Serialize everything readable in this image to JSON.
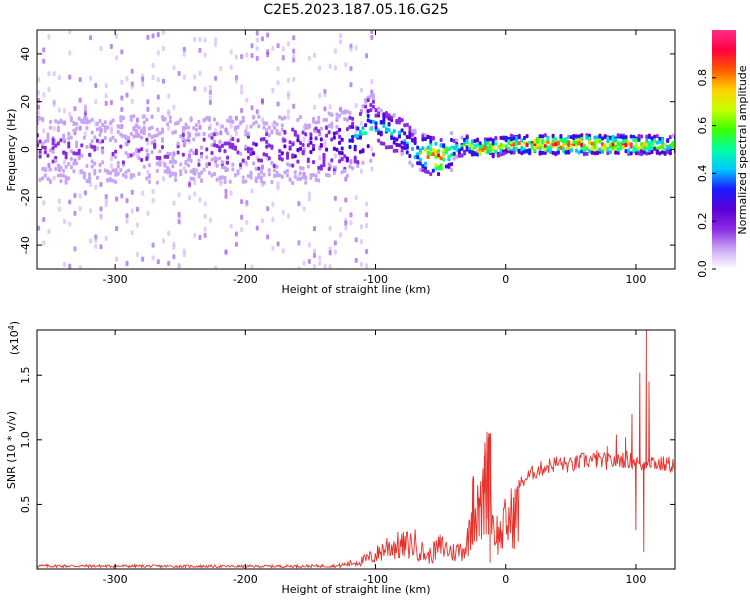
{
  "title": "C2E5.2023.187.05.16.G25",
  "chart_data": [
    {
      "type": "heatmap",
      "xlabel": "Height of straight line (km)",
      "ylabel": "Frequency (Hz)",
      "xlim": [
        -360,
        130
      ],
      "ylim": [
        -50,
        50
      ],
      "x_ticks": [
        -300,
        -200,
        -100,
        0,
        100
      ],
      "y_ticks": [
        -40,
        -20,
        0,
        20,
        40
      ],
      "colorbar": {
        "label": "Normalized spectral amplitude",
        "range": [
          0.0,
          1.0
        ],
        "ticks": [
          0.0,
          0.2,
          0.4,
          0.6,
          0.8
        ],
        "colormap": [
          "#ffffff",
          "#c9a6f5",
          "#8a2be2",
          "#5a00d6",
          "#1a1aff",
          "#00c8ff",
          "#00ffa0",
          "#3cff00",
          "#c8ff00",
          "#ffd000",
          "#ff5a00",
          "#ff0040",
          "#ff2d8a"
        ]
      },
      "ridge": {
        "x": [
          -360,
          -300,
          -250,
          -200,
          -150,
          -120,
          -100,
          -90,
          -80,
          -70,
          -60,
          -50,
          -45,
          -40,
          -30,
          -20,
          -10,
          0,
          20,
          50,
          80,
          100,
          130
        ],
        "freq": [
          0,
          0,
          0,
          0,
          0,
          3,
          10,
          8,
          5,
          0,
          -2,
          -4,
          -2,
          0,
          2,
          0,
          1,
          2,
          2,
          2,
          2,
          2,
          2
        ],
        "amplitude": [
          0.15,
          0.15,
          0.15,
          0.18,
          0.22,
          0.3,
          0.45,
          0.45,
          0.4,
          0.45,
          0.75,
          0.8,
          0.6,
          0.5,
          0.5,
          0.85,
          0.7,
          0.65,
          0.85,
          0.9,
          0.85,
          0.8,
          0.6
        ]
      },
      "grid": false
    },
    {
      "type": "line",
      "xlabel": "Height of straight line (km)",
      "ylabel": "SNR (10 * v/v)",
      "y_multiplier": "(x10",
      "y_multiplier_exp": "4",
      "y_multiplier_close": ")",
      "xlim": [
        -360,
        130
      ],
      "ylim": [
        0,
        18500
      ],
      "x_ticks": [
        -300,
        -200,
        -100,
        0,
        100
      ],
      "y_ticks": [
        5000,
        10000,
        15000
      ],
      "y_tick_labels": [
        "0.5",
        "1.0",
        "1.5"
      ],
      "series": [
        {
          "color": "#e8302a",
          "envelope": {
            "x": [
              -360,
              -200,
              -130,
              -110,
              -100,
              -90,
              -80,
              -70,
              -60,
              -50,
              -45,
              -40,
              -30,
              -25,
              -20,
              -15,
              -12,
              -10,
              -5,
              0,
              10,
              20,
              30,
              40,
              50,
              60,
              70,
              80,
              90,
              100,
              105,
              110,
              115,
              120,
              130
            ],
            "y": [
              300,
              250,
              300,
              900,
              1500,
              2600,
              2500,
              2800,
              1300,
              2500,
              2200,
              1800,
              2500,
              7000,
              5500,
              9600,
              10500,
              5000,
              3500,
              5000,
              6500,
              7400,
              7900,
              8200,
              8000,
              8400,
              8400,
              8300,
              8500,
              8300,
              8000,
              8500,
              8200,
              8100,
              8100
            ]
          },
          "spikes": [
            {
              "x": 70,
              "y": 9200
            },
            {
              "x": 78,
              "y": 9500
            },
            {
              "x": 85,
              "y": 10400
            },
            {
              "x": 92,
              "y": 10200
            },
            {
              "x": 97,
              "y": 12000
            },
            {
              "x": 100,
              "y": 3000
            },
            {
              "x": 103,
              "y": 15200
            },
            {
              "x": 106,
              "y": 1300
            },
            {
              "x": 108,
              "y": 18500
            },
            {
              "x": 110,
              "y": 14500
            },
            {
              "x": 112,
              "y": 8600
            },
            {
              "x": -25,
              "y": 7200
            },
            {
              "x": -20,
              "y": 4800
            },
            {
              "x": -16,
              "y": 9800
            },
            {
              "x": -13,
              "y": 10500
            },
            {
              "x": -12,
              "y": 500
            }
          ]
        }
      ],
      "grid": false
    }
  ]
}
